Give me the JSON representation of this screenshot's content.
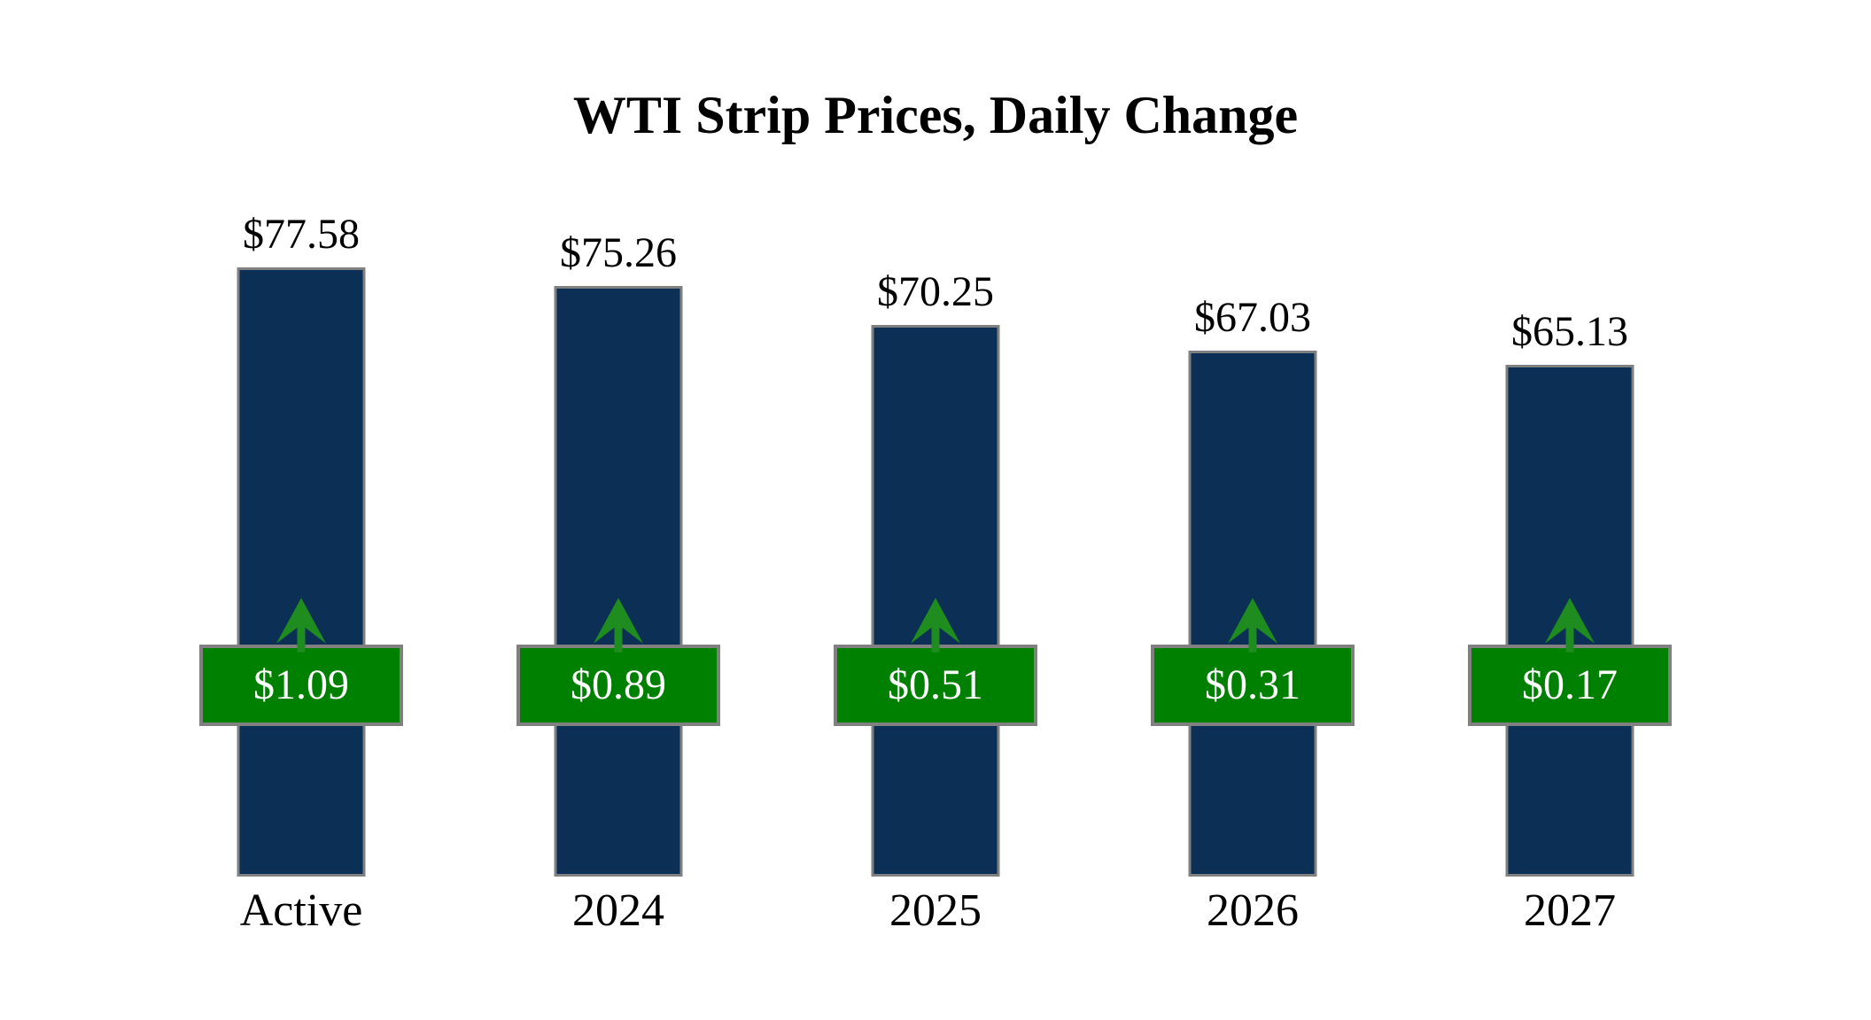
{
  "title": "WTI Strip Prices, Daily Change",
  "colors": {
    "background": "#FFFFFF",
    "bar_fill": "#0C3055",
    "bar_border": "#808080",
    "badge_fill": "#008000",
    "badge_border": "#808080",
    "badge_text": "#FFFFFF",
    "arrow_green": "#1E8C1E",
    "label_text": "#000000"
  },
  "chart_data": {
    "type": "bar",
    "title": "WTI Strip Prices, Daily Change",
    "categories": [
      "Active",
      "2024",
      "2025",
      "2026",
      "2027"
    ],
    "series": [
      {
        "name": "strip-price",
        "values": [
          77.58,
          75.26,
          70.25,
          67.03,
          65.13
        ],
        "labels": [
          "$77.58",
          "$75.26",
          "$70.25",
          "$67.03",
          "$65.13"
        ]
      },
      {
        "name": "daily-change",
        "values": [
          1.09,
          0.89,
          0.51,
          0.31,
          0.17
        ],
        "labels": [
          "$1.09",
          "$0.89",
          "$0.51",
          "$0.31",
          "$0.17"
        ],
        "indicator": "up-arrow"
      }
    ],
    "ylim": [
      0,
      80
    ],
    "grid": false,
    "legend_position": "none",
    "value_labels_position": "above-bars",
    "change_badges_position": "overlapping-band"
  }
}
